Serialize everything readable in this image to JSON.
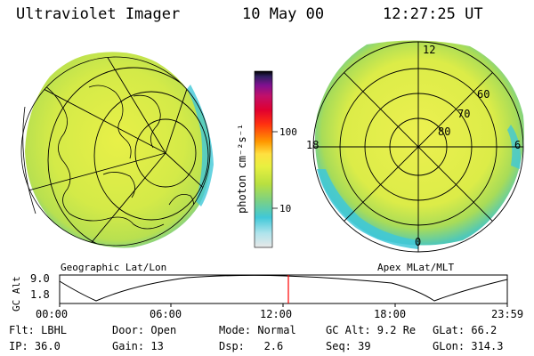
{
  "header": {
    "instrument": "Ultraviolet Imager",
    "date": "10 May 00",
    "time": "12:27:25 UT"
  },
  "colorbar": {
    "unit_label": "photon cm⁻²s⁻¹",
    "tick_100": "100",
    "tick_10": "10",
    "scale": "log",
    "colors": [
      "#e8e8e8",
      "#b0e4ec",
      "#40c8d8",
      "#78d088",
      "#b8e040",
      "#e8f040",
      "#ffe040",
      "#ff9800",
      "#ff3010",
      "#e00030",
      "#c0106a",
      "#801090",
      "#302060",
      "#000000"
    ]
  },
  "left_panel": {
    "label": "Geographic Lat/Lon"
  },
  "right_panel": {
    "label": "Apex MLat/MLT",
    "mlt_labels": {
      "top": "12",
      "left": "18",
      "right": "6",
      "bottom": "0"
    },
    "mlat_labels": [
      "60",
      "70",
      "80"
    ]
  },
  "gc_alt_plot": {
    "ylabel": "GC Alt",
    "y_max_label": "9.0",
    "y_min_label": "1.8",
    "x_ticks": [
      "00:00",
      "06:00",
      "12:00",
      "18:00",
      "23:59"
    ],
    "current_marker_color": "#ff0000"
  },
  "footer": {
    "row1": {
      "flt": "Flt: LBHL",
      "door": "Door: Open",
      "mode": "Mode: Normal",
      "gcalt": "GC Alt: 9.2 Re",
      "glat": "GLat: 66.2"
    },
    "row2": {
      "ip": "IP: 36.0",
      "gain": "Gain: 13",
      "dsp": "Dsp:   2.6",
      "seq": "Seq: 39",
      "glon": "GLon: 314.3"
    }
  }
}
